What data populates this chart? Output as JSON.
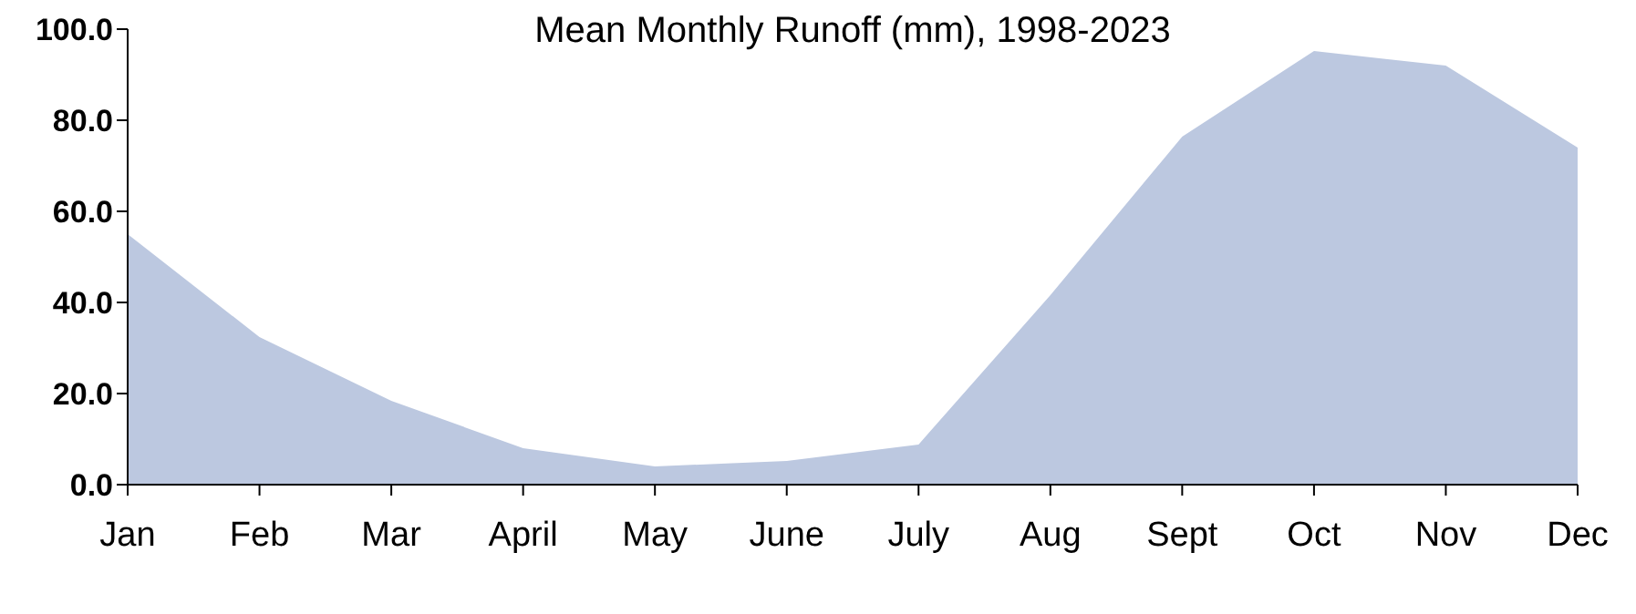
{
  "chart_data": {
    "type": "area",
    "title": "Mean Monthly Runoff (mm), 1998-2023",
    "categories": [
      "Jan",
      "Feb",
      "Mar",
      "April",
      "May",
      "June",
      "July",
      "Aug",
      "Sept",
      "Oct",
      "Nov",
      "Dec"
    ],
    "values": [
      55,
      32.4,
      18.4,
      8,
      4,
      5.2,
      8.8,
      41.6,
      76.4,
      95.2,
      92,
      74
    ],
    "color": "#bcc8e0",
    "ylim": [
      0,
      100
    ],
    "yticks": [
      {
        "value": 0,
        "label": "0.0"
      },
      {
        "value": 20,
        "label": "20.0"
      },
      {
        "value": 40,
        "label": "40.0"
      },
      {
        "value": 60,
        "label": "60.0"
      },
      {
        "value": 80,
        "label": "80.0"
      },
      {
        "value": 100,
        "label": "100.0"
      }
    ],
    "grid": false
  }
}
